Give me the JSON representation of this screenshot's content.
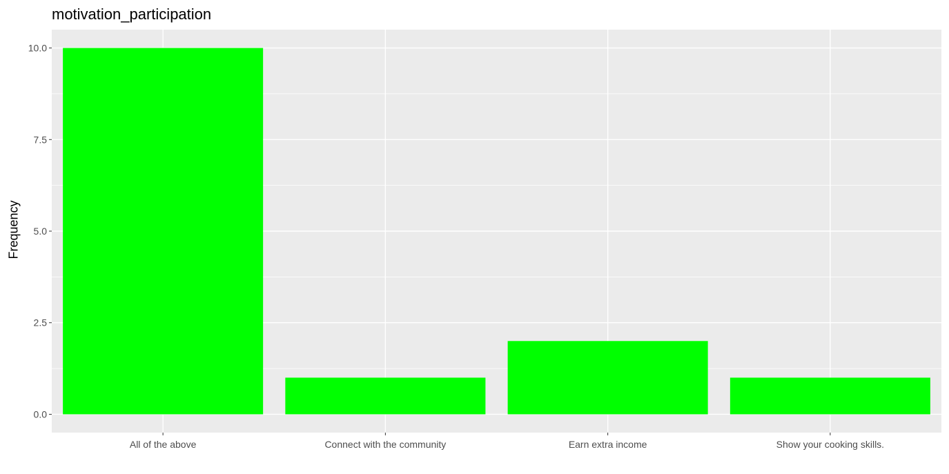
{
  "chart_data": {
    "type": "bar",
    "title": "motivation_participation",
    "xlabel": "",
    "ylabel": "Frequency",
    "categories": [
      "All of the above",
      "Connect with the community",
      "Earn extra income",
      "Show your cooking skills."
    ],
    "values": [
      10,
      1,
      2,
      1
    ],
    "ylim": [
      -0.5,
      10.5
    ],
    "yticks": [
      0,
      2.5,
      5,
      7.5,
      10
    ],
    "ytick_labels": [
      "0.0",
      "2.5",
      "5.0",
      "7.5",
      "10.0"
    ],
    "bar_color": "#00FF00",
    "panel_background": "#EBEBEB",
    "grid": true,
    "legend": "none"
  }
}
